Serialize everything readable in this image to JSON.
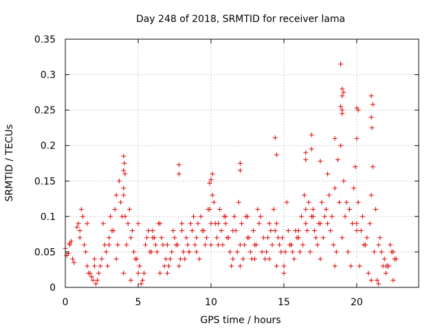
{
  "chart_data": {
    "type": "scatter",
    "title": "Day 248 of 2018, SRMTID for receiver lama",
    "xlabel": "GPS time / hours",
    "ylabel": "SRMTID / TECUs",
    "xlim": [
      0,
      24.25
    ],
    "ylim": [
      0,
      0.35
    ],
    "xticks": [
      0,
      5,
      10,
      15,
      20
    ],
    "xtick_labels": [
      "0",
      "5",
      "10",
      "15",
      "20"
    ],
    "yticks": [
      0,
      0.05,
      0.1,
      0.15,
      0.2,
      0.25,
      0.3,
      0.35
    ],
    "ytick_labels": [
      "0",
      "0.05",
      "0.1",
      "0.15",
      "0.2",
      "0.25",
      "0.3",
      "0.35"
    ],
    "grid": true,
    "marker": "plus",
    "marker_color": "#e00000",
    "series": [
      {
        "name": "SRMTID",
        "x": [
          0.0,
          0.2,
          0.3,
          0.5,
          0.8,
          1.0,
          1.1,
          1.3,
          1.5,
          1.7,
          1.8,
          2.0,
          2.2,
          2.4,
          2.6,
          2.8,
          3.0,
          3.2,
          3.4,
          3.6,
          3.8,
          4.0,
          4.1,
          4.3,
          4.5,
          4.7,
          4.9,
          5.0,
          5.1,
          5.3,
          5.5,
          5.7,
          5.9,
          6.1,
          6.3,
          6.5,
          6.7,
          6.9,
          7.1,
          7.3,
          7.5,
          7.7,
          7.9,
          8.1,
          8.3,
          8.5,
          8.7,
          8.9,
          9.1,
          9.3,
          9.5,
          9.7,
          9.9,
          10.1,
          10.3,
          10.5,
          10.7,
          10.9,
          11.1,
          11.3,
          11.5,
          11.7,
          11.9,
          12.1,
          12.3,
          12.5,
          12.7,
          12.9,
          13.1,
          13.3,
          13.5,
          13.7,
          13.9,
          14.1,
          14.3,
          14.5,
          14.7,
          14.9,
          15.1,
          15.3,
          15.5,
          15.7,
          15.9,
          16.1,
          16.3,
          16.5,
          16.7,
          16.9,
          17.1,
          17.3,
          17.5,
          17.7,
          17.9,
          18.1,
          18.3,
          18.5,
          18.7,
          18.9,
          19.0,
          19.1,
          19.3,
          19.5,
          19.7,
          19.8,
          19.9,
          20.1,
          20.3,
          20.5,
          20.7,
          20.9,
          21.0,
          21.1,
          21.3,
          21.5,
          21.7,
          21.9,
          22.1,
          22.3,
          22.5,
          22.7,
          0.1,
          0.4,
          0.6,
          0.9,
          1.2,
          1.4,
          1.6,
          1.9,
          2.1,
          2.3,
          2.5,
          2.7,
          2.9,
          3.1,
          3.3,
          3.5,
          3.7,
          3.9,
          4.0,
          4.2,
          4.4,
          4.6,
          4.8,
          5.2,
          5.4,
          5.6,
          5.8,
          6.0,
          6.2,
          6.4,
          6.6,
          6.8,
          7.0,
          7.2,
          7.4,
          7.6,
          7.8,
          8.0,
          8.2,
          8.4,
          8.6,
          8.8,
          9.0,
          9.2,
          9.4,
          9.6,
          9.8,
          10.0,
          10.2,
          10.4,
          10.6,
          10.8,
          11.0,
          11.2,
          11.4,
          11.6,
          11.8,
          12.0,
          12.2,
          12.4,
          12.6,
          12.8,
          13.0,
          13.2,
          13.4,
          13.6,
          13.8,
          14.0,
          14.2,
          14.4,
          14.6,
          14.8,
          15.0,
          15.2,
          15.4,
          15.6,
          15.8,
          16.0,
          16.2,
          16.4,
          16.6,
          16.8,
          17.0,
          17.2,
          17.4,
          17.6,
          17.8,
          18.0,
          18.2,
          18.4,
          18.6,
          18.8,
          19.2,
          19.4,
          19.6,
          20.0,
          20.2,
          20.4,
          20.6,
          20.8,
          21.2,
          21.4,
          21.6,
          21.8,
          22.0,
          22.2,
          22.4,
          22.6,
          0.3,
          1.0,
          1.5,
          2.0,
          3.0,
          3.5,
          4.0,
          4.5,
          5.0,
          6.0,
          6.5,
          7.0,
          8.0,
          8.5,
          9.0,
          10.0,
          10.5,
          11.0,
          11.5,
          12.0,
          12.5,
          13.0,
          14.0,
          14.5,
          15.0,
          15.5,
          16.0,
          16.5,
          17.0,
          17.5,
          18.0,
          18.5,
          19.0,
          19.5,
          20.0,
          20.5,
          21.0,
          21.5,
          22.0,
          22.5,
          4.0,
          4.05,
          4.1,
          4.0,
          7.8,
          7.8,
          14.4,
          14.5,
          16.9,
          18.9,
          19.0,
          19.0,
          19.1,
          18.9,
          19.0,
          20.0,
          20.1,
          20.0,
          21.0,
          21.1,
          21.0,
          21.05,
          12.0,
          12.0,
          16.5,
          16.5,
          16.9,
          17.5,
          18.5,
          10.1,
          10.0,
          9.9
        ],
        "y": [
          0.055,
          0.048,
          0.062,
          0.04,
          0.085,
          0.07,
          0.11,
          0.06,
          0.03,
          0.02,
          0.015,
          0.04,
          0.01,
          0.03,
          0.09,
          0.05,
          0.07,
          0.08,
          0.11,
          0.06,
          0.12,
          0.14,
          0.1,
          0.09,
          0.07,
          0.05,
          0.04,
          0.02,
          0.03,
          0.01,
          0.06,
          0.08,
          0.05,
          0.07,
          0.05,
          0.09,
          0.06,
          0.04,
          0.03,
          0.05,
          0.07,
          0.06,
          0.04,
          0.05,
          0.07,
          0.05,
          0.08,
          0.06,
          0.09,
          0.1,
          0.08,
          0.07,
          0.11,
          0.13,
          0.09,
          0.06,
          0.08,
          0.1,
          0.07,
          0.05,
          0.04,
          0.08,
          0.12,
          0.09,
          0.06,
          0.07,
          0.05,
          0.08,
          0.06,
          0.09,
          0.05,
          0.04,
          0.07,
          0.08,
          0.11,
          0.09,
          0.06,
          0.07,
          0.05,
          0.08,
          0.06,
          0.04,
          0.07,
          0.05,
          0.06,
          0.09,
          0.12,
          0.1,
          0.08,
          0.06,
          0.09,
          0.07,
          0.11,
          0.13,
          0.1,
          0.14,
          0.18,
          0.2,
          0.25,
          0.15,
          0.12,
          0.11,
          0.09,
          0.14,
          0.17,
          0.12,
          0.08,
          0.06,
          0.07,
          0.09,
          0.13,
          0.17,
          0.11,
          0.06,
          0.05,
          0.04,
          0.03,
          0.06,
          0.05,
          0.04,
          0.045,
          0.065,
          0.035,
          0.09,
          0.1,
          0.05,
          0.02,
          0.01,
          0.005,
          0.02,
          0.04,
          0.06,
          0.03,
          0.1,
          0.08,
          0.13,
          0.15,
          0.1,
          0.13,
          0.06,
          0.11,
          0.08,
          0.04,
          0.005,
          0.02,
          0.07,
          0.05,
          0.08,
          0.06,
          0.09,
          0.07,
          0.03,
          0.02,
          0.04,
          0.08,
          0.06,
          0.03,
          0.09,
          0.04,
          0.06,
          0.09,
          0.1,
          0.05,
          0.04,
          0.08,
          0.06,
          0.11,
          0.09,
          0.12,
          0.07,
          0.11,
          0.06,
          0.09,
          0.07,
          0.03,
          0.1,
          0.05,
          0.06,
          0.04,
          0.1,
          0.07,
          0.04,
          0.06,
          0.11,
          0.1,
          0.07,
          0.05,
          0.04,
          0.06,
          0.08,
          0.07,
          0.05,
          0.03,
          0.12,
          0.06,
          0.05,
          0.08,
          0.07,
          0.1,
          0.13,
          0.08,
          0.05,
          0.11,
          0.07,
          0.09,
          0.12,
          0.1,
          0.16,
          0.08,
          0.06,
          0.05,
          0.12,
          0.1,
          0.05,
          0.03,
          0.09,
          0.03,
          0.1,
          0.06,
          0.02,
          0.05,
          0.01,
          0.07,
          0.03,
          0.02,
          0.03,
          0.05,
          0.04,
          0.06,
          0.08,
          0.09,
          0.03,
          0.06,
          0.04,
          0.02,
          0.01,
          0.09,
          0.07,
          0.02,
          0.06,
          0.08,
          0.05,
          0.07,
          0.06,
          0.09,
          0.1,
          0.08,
          0.03,
          0.1,
          0.04,
          0.09,
          0.03,
          0.02,
          0.06,
          0.08,
          0.11,
          0.1,
          0.04,
          0.09,
          0.03,
          0.07,
          0.11,
          0.08,
          0.06,
          0.01,
          0.005,
          0.03,
          0.01,
          0.185,
          0.175,
          0.16,
          0.165,
          0.173,
          0.16,
          0.211,
          0.187,
          0.215,
          0.315,
          0.28,
          0.27,
          0.275,
          0.255,
          0.245,
          0.253,
          0.25,
          0.21,
          0.27,
          0.258,
          0.24,
          0.225,
          0.175,
          0.165,
          0.19,
          0.18,
          0.195,
          0.178,
          0.21,
          0.16,
          0.152,
          0.147
        ]
      }
    ]
  }
}
